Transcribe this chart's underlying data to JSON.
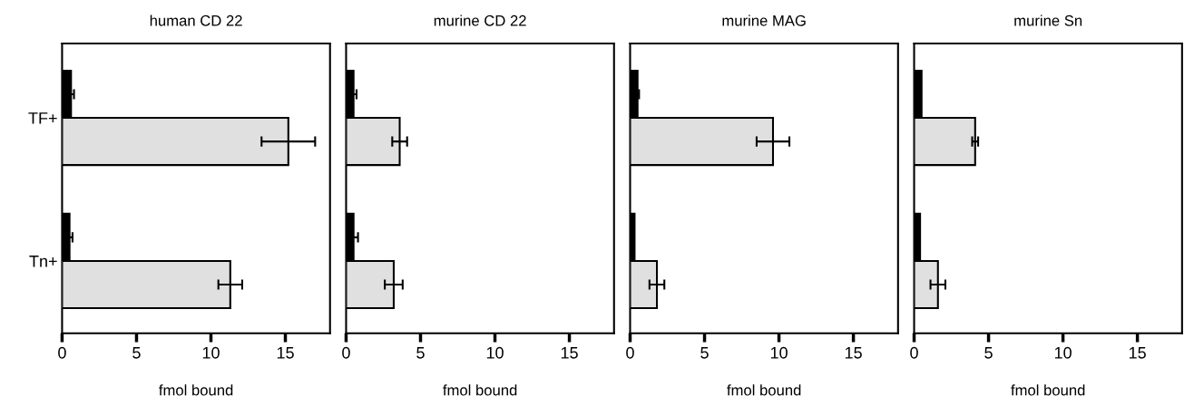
{
  "chart_data": [
    {
      "type": "bar",
      "orientation": "horizontal",
      "title": "human CD 22",
      "xlabel": "fmol bound",
      "categories": [
        "TF+",
        "Tn+"
      ],
      "xlim": [
        0,
        18
      ],
      "xticks": [
        0,
        5,
        10,
        15
      ],
      "series": [
        {
          "color": "#000000",
          "values": [
            0.6,
            0.5
          ],
          "errors": [
            0.2,
            0.2
          ]
        },
        {
          "color": "#e0e0e0",
          "values": [
            15.2,
            11.3
          ],
          "errors": [
            1.8,
            0.8
          ]
        }
      ]
    },
    {
      "type": "bar",
      "orientation": "horizontal",
      "title": "murine CD 22",
      "xlabel": "fmol bound",
      "categories": [
        null,
        null
      ],
      "xlim": [
        0,
        18
      ],
      "xticks": [
        0,
        5,
        10,
        15
      ],
      "tick_labels": "x",
      "series": [
        {
          "color": "#000000",
          "values": [
            0.5,
            0.5
          ],
          "errors": [
            0.2,
            0.3
          ]
        },
        {
          "color": "#e0e0e0",
          "values": [
            3.6,
            3.2
          ],
          "errors": [
            0.5,
            0.6
          ]
        }
      ]
    },
    {
      "type": "bar",
      "orientation": "horizontal",
      "title": "murine MAG",
      "xlabel": "fmol bound",
      "categories": [
        null,
        null
      ],
      "xlim": [
        0,
        18
      ],
      "xticks": [
        0,
        5,
        10,
        15
      ],
      "tick_labels": "x",
      "series": [
        {
          "color": "#000000",
          "values": [
            0.5,
            0.3
          ],
          "errors": [
            0.1,
            null
          ]
        },
        {
          "color": "#e0e0e0",
          "values": [
            9.6,
            1.8
          ],
          "errors": [
            1.1,
            0.5
          ]
        }
      ]
    },
    {
      "type": "bar",
      "orientation": "horizontal",
      "title": "murine Sn",
      "xlabel": "fmol bound",
      "categories": [
        null,
        null
      ],
      "xlim": [
        0,
        18
      ],
      "xticks": [
        0,
        5,
        10,
        15
      ],
      "tick_labels": "x",
      "series": [
        {
          "color": "#000000",
          "values": [
            0.5,
            0.4
          ],
          "errors": [
            null,
            null
          ]
        },
        {
          "color": "#e0e0e0",
          "values": [
            4.1,
            1.6
          ],
          "errors": [
            0.2,
            0.5
          ]
        }
      ]
    }
  ]
}
